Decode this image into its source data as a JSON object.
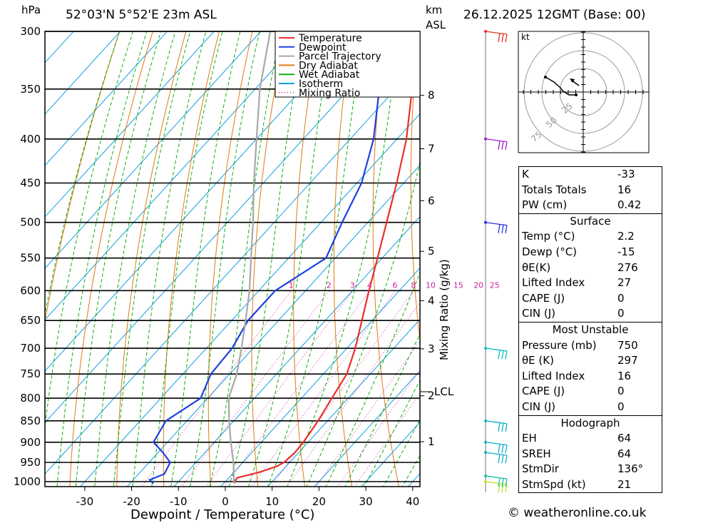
{
  "header": {
    "unit_left": "hPa",
    "location": "52°03'N  5°52'E  23m  ASL",
    "km_label": "km",
    "asl_label": "ASL",
    "datetime": "26.12.2025  12GMT  (Base: 00)"
  },
  "chart_data": {
    "type": "line",
    "xlabel": "Dewpoint / Temperature (°C)",
    "ylabel": "hPa",
    "mixing_ratio_axis_label": "Mixing Ratio (g/kg)",
    "x_ticks": [
      -30,
      -20,
      -10,
      0,
      10,
      20,
      30,
      40
    ],
    "pressure_levels": [
      300,
      350,
      400,
      450,
      500,
      550,
      600,
      650,
      700,
      750,
      800,
      850,
      900,
      950,
      1000
    ],
    "km_ticks": [
      1,
      2,
      3,
      4,
      5,
      6,
      7,
      8
    ],
    "mixing_ratio_labels": [
      "1",
      "2",
      "3",
      "4",
      "6",
      "8",
      "10",
      "15",
      "20",
      "25"
    ],
    "mixing_ratio_values": [
      1,
      2,
      3,
      4,
      6,
      8,
      10,
      15,
      20,
      25
    ],
    "lcl_label": "LCL",
    "lcl_pressure": 785,
    "legend": [
      {
        "name": "Temperature",
        "color": "#e8302a"
      },
      {
        "name": "Dewpoint",
        "color": "#2040e0"
      },
      {
        "name": "Parcel Trajectory",
        "color": "#a8a8a8"
      },
      {
        "name": "Dry Adiabat",
        "color": "#e07a10"
      },
      {
        "name": "Wet Adiabat",
        "color": "#10b010"
      },
      {
        "name": "Isotherm",
        "color": "#10a0e0"
      },
      {
        "name": "Mixing Ratio",
        "color": "#d020a0"
      }
    ],
    "series": [
      {
        "name": "Temperature",
        "points": [
          [
            1005,
            2.2
          ],
          [
            1000,
            2.0
          ],
          [
            990,
            1.8
          ],
          [
            975,
            5.5
          ],
          [
            960,
            8.0
          ],
          [
            950,
            8.8
          ],
          [
            925,
            9.2
          ],
          [
            900,
            9.0
          ],
          [
            850,
            8.0
          ],
          [
            800,
            6.5
          ],
          [
            750,
            5.0
          ],
          [
            700,
            1.8
          ],
          [
            650,
            -2.2
          ],
          [
            600,
            -6.5
          ],
          [
            550,
            -11.0
          ],
          [
            500,
            -16.0
          ],
          [
            450,
            -21.5
          ],
          [
            400,
            -28.0
          ],
          [
            350,
            -36.5
          ],
          [
            300,
            -46.0
          ]
        ]
      },
      {
        "name": "Dewpoint",
        "points": [
          [
            1005,
            -15.0
          ],
          [
            995,
            -16.5
          ],
          [
            980,
            -14.5
          ],
          [
            950,
            -15.5
          ],
          [
            925,
            -19.0
          ],
          [
            900,
            -23.0
          ],
          [
            850,
            -24.5
          ],
          [
            800,
            -21.5
          ],
          [
            750,
            -24.0
          ],
          [
            700,
            -24.5
          ],
          [
            650,
            -26.5
          ],
          [
            600,
            -26.5
          ],
          [
            550,
            -22.0
          ],
          [
            500,
            -25.5
          ],
          [
            450,
            -29.0
          ],
          [
            400,
            -35.0
          ],
          [
            350,
            -43.5
          ],
          [
            300,
            -52.0
          ]
        ]
      },
      {
        "name": "Parcel Trajectory",
        "points": [
          [
            1005,
            2.2
          ],
          [
            950,
            -2.0
          ],
          [
            900,
            -6.5
          ],
          [
            850,
            -11.0
          ],
          [
            800,
            -15.5
          ],
          [
            750,
            -18.5
          ],
          [
            700,
            -22.5
          ],
          [
            650,
            -27.0
          ],
          [
            600,
            -32.0
          ],
          [
            550,
            -38.0
          ],
          [
            500,
            -44.5
          ],
          [
            450,
            -52.0
          ],
          [
            400,
            -60.0
          ],
          [
            350,
            -69.0
          ],
          [
            300,
            -78.0
          ]
        ]
      }
    ],
    "wind_barbs": [
      {
        "pressure": 1000,
        "color": "#c0e030"
      },
      {
        "pressure": 985,
        "color": "#20c0a0"
      },
      {
        "pressure": 925,
        "color": "#10b0c8"
      },
      {
        "pressure": 900,
        "color": "#10b0c8"
      },
      {
        "pressure": 850,
        "color": "#10b0c8"
      },
      {
        "pressure": 700,
        "color": "#10c0c0"
      },
      {
        "pressure": 500,
        "color": "#3030e0"
      },
      {
        "pressure": 400,
        "color": "#a020d0"
      },
      {
        "pressure": 300,
        "color": "#e83020"
      }
    ]
  },
  "hodograph": {
    "unit": "kt",
    "ring_labels": [
      "25",
      "50",
      "75"
    ]
  },
  "indices": {
    "basic": [
      {
        "label": "K",
        "value": "-33"
      },
      {
        "label": "Totals Totals",
        "value": "16"
      },
      {
        "label": "PW (cm)",
        "value": "0.42"
      }
    ],
    "surface_title": "Surface",
    "surface": [
      {
        "label": "Temp (°C)",
        "value": "2.2"
      },
      {
        "label": "Dewp (°C)",
        "value": "-15"
      },
      {
        "label": "θE(K)",
        "value": "276"
      },
      {
        "label": "Lifted Index",
        "value": "27"
      },
      {
        "label": "CAPE (J)",
        "value": "0"
      },
      {
        "label": "CIN (J)",
        "value": "0"
      }
    ],
    "mu_title": "Most Unstable",
    "mu": [
      {
        "label": "Pressure (mb)",
        "value": "750"
      },
      {
        "label": "θE (K)",
        "value": "297"
      },
      {
        "label": "Lifted Index",
        "value": "16"
      },
      {
        "label": "CAPE (J)",
        "value": "0"
      },
      {
        "label": "CIN (J)",
        "value": "0"
      }
    ],
    "hodo_title": "Hodograph",
    "hodo": [
      {
        "label": "EH",
        "value": "64"
      },
      {
        "label": "SREH",
        "value": "64"
      },
      {
        "label": "StmDir",
        "value": "136°"
      },
      {
        "label": "StmSpd (kt)",
        "value": "21"
      }
    ]
  },
  "footer": {
    "credit": "© weatheronline.co.uk"
  }
}
